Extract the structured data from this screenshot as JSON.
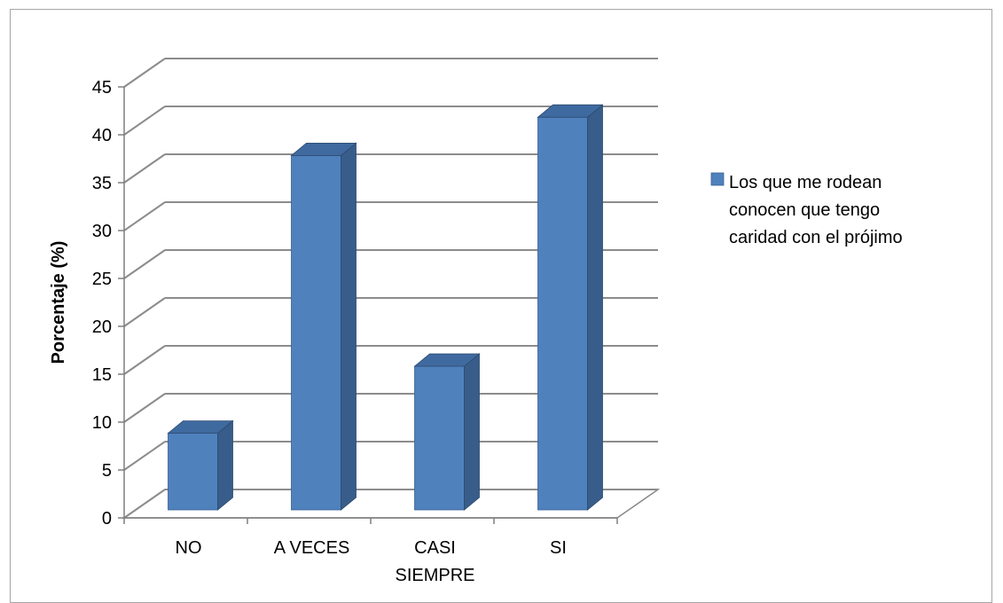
{
  "chart_data": {
    "type": "bar",
    "style": "3d-column",
    "categories": [
      "NO",
      "A VECES",
      "CASI SIEMPRE",
      "SI"
    ],
    "category_lines": [
      [
        "NO"
      ],
      [
        "A VECES"
      ],
      [
        "CASI",
        "SIEMPRE"
      ],
      [
        "SI"
      ]
    ],
    "series": [
      {
        "name": "Los que me rodean conocen que tengo caridad con el prójimo",
        "name_lines": [
          "Los que me rodean",
          "conocen que tengo",
          "caridad con el prójimo"
        ],
        "values": [
          8,
          37,
          15,
          41
        ],
        "color": "#4f81bd"
      }
    ],
    "title": "",
    "xlabel": "",
    "ylabel": "Porcentaje (%)",
    "ylim": [
      0,
      45
    ],
    "yticks": [
      0,
      5,
      10,
      15,
      20,
      25,
      30,
      35,
      40,
      45
    ],
    "grid": true,
    "legend": "right"
  }
}
